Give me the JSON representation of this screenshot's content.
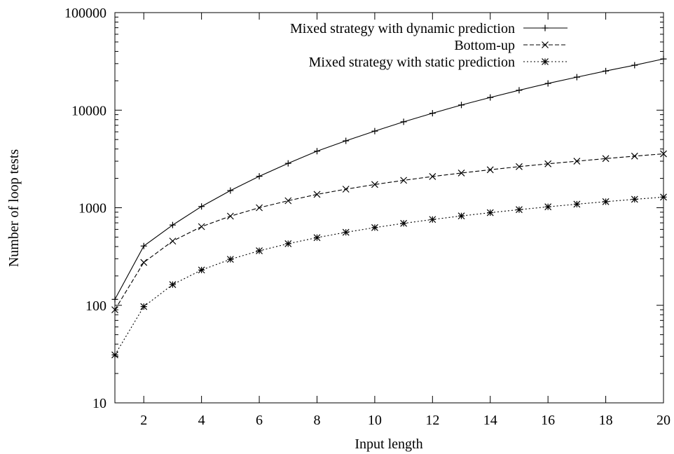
{
  "chart_data": {
    "type": "line",
    "title": "",
    "xlabel": "Input length",
    "ylabel": "Number of loop tests",
    "xlim": [
      1,
      20
    ],
    "ylim": [
      10,
      100000
    ],
    "yscale": "log",
    "grid": false,
    "legend_position": "top-right",
    "x_ticks": [
      2,
      4,
      6,
      8,
      10,
      12,
      14,
      16,
      18,
      20
    ],
    "y_ticks": [
      10,
      100,
      1000,
      10000,
      100000
    ],
    "x": [
      1,
      2,
      3,
      4,
      5,
      6,
      7,
      8,
      9,
      10,
      11,
      12,
      13,
      14,
      15,
      16,
      17,
      18,
      19,
      20
    ],
    "series": [
      {
        "name": "Mixed strategy with dynamic prediction",
        "line_style": "solid",
        "marker": "plus",
        "values": [
          115,
          405,
          665,
          1030,
          1500,
          2100,
          2850,
          3800,
          4850,
          6100,
          7600,
          9300,
          11300,
          13500,
          16000,
          18800,
          21800,
          25200,
          28900,
          33500
        ]
      },
      {
        "name": "Bottom-up",
        "line_style": "dashed",
        "marker": "cross",
        "values": [
          90,
          275,
          455,
          640,
          820,
          1000,
          1180,
          1370,
          1550,
          1730,
          1910,
          2090,
          2270,
          2450,
          2640,
          2820,
          3000,
          3190,
          3380,
          3570
        ]
      },
      {
        "name": "Mixed strategy with static prediction",
        "line_style": "dotted",
        "marker": "asterisk",
        "values": [
          31,
          97,
          163,
          230,
          296,
          362,
          428,
          494,
          560,
          626,
          692,
          758,
          824,
          890,
          956,
          1022,
          1088,
          1154,
          1220,
          1286
        ]
      }
    ]
  }
}
